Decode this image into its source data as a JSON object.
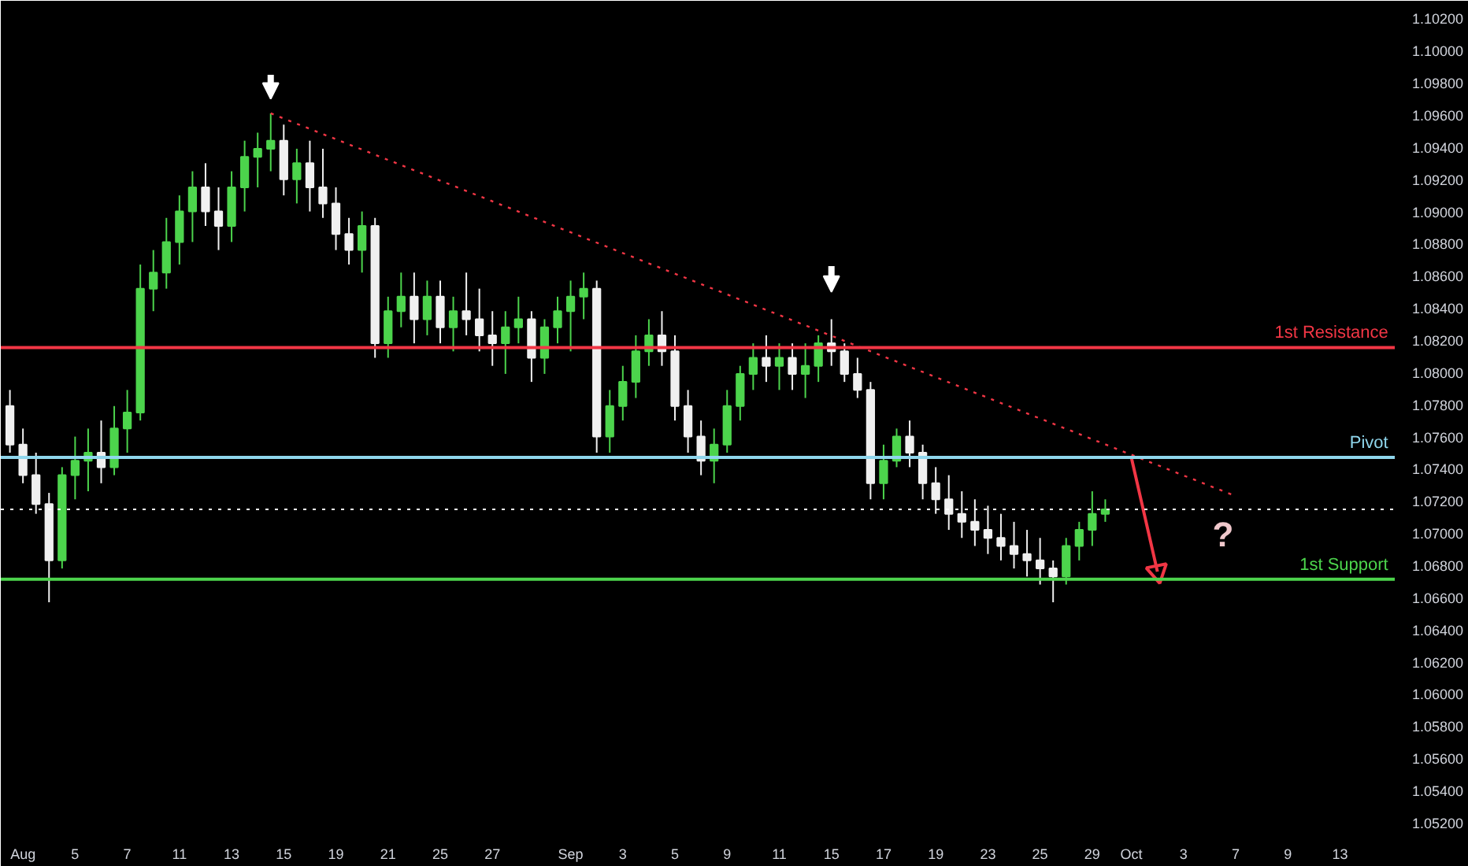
{
  "chart_data": {
    "type": "candlestick",
    "categories": [
      null,
      "Aug",
      null,
      null,
      null,
      "5",
      null,
      null,
      null,
      "7",
      null,
      null,
      null,
      "11",
      null,
      null,
      null,
      "13",
      null,
      null,
      null,
      "15",
      null,
      null,
      null,
      "19",
      null,
      null,
      null,
      "21",
      null,
      null,
      null,
      "25",
      null,
      null,
      null,
      "27",
      null,
      null,
      null,
      null,
      null,
      "Sep",
      null,
      null,
      null,
      "3",
      null,
      null,
      null,
      "5",
      null,
      null,
      null,
      "9",
      null,
      null,
      null,
      "11",
      null,
      null,
      null,
      "15",
      null,
      null,
      null,
      "17",
      null,
      null,
      null,
      "19",
      null,
      null,
      null,
      "23",
      null,
      null,
      null,
      "25",
      null,
      null,
      null,
      "29",
      null,
      null,
      "Oct",
      null,
      null,
      null,
      "3",
      null,
      null,
      null,
      "7",
      null,
      null,
      null,
      "9",
      null,
      null,
      null,
      "13",
      null,
      null,
      null,
      null
    ],
    "ohlc": [
      [
        1.0779,
        1.0789,
        1.075,
        1.0755
      ],
      [
        1.0755,
        1.0765,
        1.0731,
        1.0736
      ],
      [
        1.0736,
        1.075,
        1.0712,
        1.0718
      ],
      [
        1.0718,
        1.0725,
        1.0657,
        1.0683
      ],
      [
        1.0683,
        1.0741,
        1.0678,
        1.0736
      ],
      [
        1.0736,
        1.076,
        1.0721,
        1.0745
      ],
      [
        1.0745,
        1.0765,
        1.0726,
        1.075
      ],
      [
        1.075,
        1.077,
        1.0731,
        1.0741
      ],
      [
        1.0741,
        1.0779,
        1.0736,
        1.0765
      ],
      [
        1.0765,
        1.0789,
        1.075,
        1.0775
      ],
      [
        1.0775,
        1.0867,
        1.077,
        1.0852
      ],
      [
        1.0852,
        1.0876,
        1.0838,
        1.0862
      ],
      [
        1.0862,
        1.0896,
        1.0852,
        1.0881
      ],
      [
        1.0881,
        1.091,
        1.0867,
        1.09
      ],
      [
        1.09,
        1.0925,
        1.0881,
        1.0915
      ],
      [
        1.0915,
        1.093,
        1.0891,
        1.09
      ],
      [
        1.09,
        1.0915,
        1.0876,
        1.0891
      ],
      [
        1.0891,
        1.0925,
        1.0881,
        1.0915
      ],
      [
        1.0915,
        1.0944,
        1.09,
        1.0934
      ],
      [
        1.0934,
        1.0949,
        1.0915,
        1.0939
      ],
      [
        1.0939,
        1.0961,
        1.0925,
        1.0944
      ],
      [
        1.0944,
        1.0954,
        1.091,
        1.092
      ],
      [
        1.092,
        1.0939,
        1.0905,
        1.093
      ],
      [
        1.093,
        1.0944,
        1.09,
        1.0915
      ],
      [
        1.0915,
        1.0939,
        1.0896,
        1.0905
      ],
      [
        1.0905,
        1.0915,
        1.0876,
        1.0886
      ],
      [
        1.0886,
        1.0896,
        1.0867,
        1.0876
      ],
      [
        1.0876,
        1.09,
        1.0862,
        1.0891
      ],
      [
        1.0891,
        1.0896,
        1.0809,
        1.0818
      ],
      [
        1.0818,
        1.0847,
        1.0809,
        1.0838
      ],
      [
        1.0838,
        1.0862,
        1.0828,
        1.0847
      ],
      [
        1.0847,
        1.0862,
        1.0818,
        1.0833
      ],
      [
        1.0833,
        1.0857,
        1.0823,
        1.0847
      ],
      [
        1.0847,
        1.0857,
        1.0818,
        1.0828
      ],
      [
        1.0828,
        1.0847,
        1.0813,
        1.0838
      ],
      [
        1.0838,
        1.0862,
        1.0823,
        1.0833
      ],
      [
        1.0833,
        1.0852,
        1.0813,
        1.0823
      ],
      [
        1.0823,
        1.0838,
        1.0804,
        1.0818
      ],
      [
        1.0818,
        1.0838,
        1.0799,
        1.0828
      ],
      [
        1.0828,
        1.0847,
        1.0818,
        1.0833
      ],
      [
        1.0833,
        1.0838,
        1.0794,
        1.0809
      ],
      [
        1.0809,
        1.0833,
        1.0799,
        1.0828
      ],
      [
        1.0828,
        1.0847,
        1.0818,
        1.0838
      ],
      [
        1.0838,
        1.0857,
        1.0813,
        1.0847
      ],
      [
        1.0847,
        1.0862,
        1.0833,
        1.0852
      ],
      [
        1.0852,
        1.0857,
        1.075,
        1.076
      ],
      [
        1.076,
        1.0789,
        1.075,
        1.0779
      ],
      [
        1.0779,
        1.0804,
        1.077,
        1.0794
      ],
      [
        1.0794,
        1.0823,
        1.0784,
        1.0813
      ],
      [
        1.0813,
        1.0833,
        1.0804,
        1.0823
      ],
      [
        1.0823,
        1.0838,
        1.0804,
        1.0813
      ],
      [
        1.0813,
        1.0823,
        1.077,
        1.0779
      ],
      [
        1.0779,
        1.0789,
        1.075,
        1.076
      ],
      [
        1.076,
        1.077,
        1.0736,
        1.0745
      ],
      [
        1.0745,
        1.0765,
        1.0731,
        1.0755
      ],
      [
        1.0755,
        1.0789,
        1.075,
        1.0779
      ],
      [
        1.0779,
        1.0804,
        1.077,
        1.0799
      ],
      [
        1.0799,
        1.0818,
        1.0789,
        1.0809
      ],
      [
        1.0809,
        1.0823,
        1.0794,
        1.0804
      ],
      [
        1.0804,
        1.0818,
        1.0789,
        1.0809
      ],
      [
        1.0809,
        1.0818,
        1.0789,
        1.0799
      ],
      [
        1.0799,
        1.0818,
        1.0784,
        1.0804
      ],
      [
        1.0804,
        1.0823,
        1.0794,
        1.0818
      ],
      [
        1.0818,
        1.0833,
        1.0804,
        1.0813
      ],
      [
        1.0813,
        1.0818,
        1.0794,
        1.0799
      ],
      [
        1.0799,
        1.0809,
        1.0784,
        1.0789
      ],
      [
        1.0789,
        1.0794,
        1.0721,
        1.0731
      ],
      [
        1.0731,
        1.0755,
        1.0721,
        1.0745
      ],
      [
        1.0745,
        1.0765,
        1.0741,
        1.076
      ],
      [
        1.076,
        1.077,
        1.0741,
        1.075
      ],
      [
        1.075,
        1.0755,
        1.0721,
        1.0731
      ],
      [
        1.0731,
        1.0741,
        1.0712,
        1.0721
      ],
      [
        1.0721,
        1.0736,
        1.0702,
        1.0712
      ],
      [
        1.0712,
        1.0726,
        1.0697,
        1.0707
      ],
      [
        1.0707,
        1.0721,
        1.0692,
        1.0702
      ],
      [
        1.0702,
        1.0717,
        1.0687,
        1.0697
      ],
      [
        1.0697,
        1.0712,
        1.0683,
        1.0692
      ],
      [
        1.0692,
        1.0707,
        1.0678,
        1.0687
      ],
      [
        1.0687,
        1.0702,
        1.0673,
        1.0683
      ],
      [
        1.0683,
        1.0697,
        1.0668,
        1.0678
      ],
      [
        1.0678,
        1.0683,
        1.0657,
        1.0673
      ],
      [
        1.0673,
        1.0697,
        1.0668,
        1.0692
      ],
      [
        1.0692,
        1.0707,
        1.0683,
        1.0702
      ],
      [
        1.0702,
        1.0726,
        1.0692,
        1.0712
      ],
      [
        1.0712,
        1.0721,
        1.0707,
        1.07148
      ],
      null,
      null,
      null,
      null,
      null,
      null,
      null,
      null,
      null,
      null,
      null,
      null,
      null,
      null,
      null,
      null,
      null,
      null,
      null,
      null,
      null,
      null
    ],
    "series": [
      {
        "type": "line",
        "color": "#f23645",
        "line_style": "dotted",
        "values": [
          null,
          null,
          null,
          null,
          null,
          null,
          null,
          null,
          null,
          null,
          null,
          null,
          null,
          null,
          null,
          null,
          null,
          null,
          null,
          null,
          1.0961,
          null,
          null,
          null,
          null,
          null,
          null,
          null,
          null,
          null,
          null,
          null,
          null,
          null,
          null,
          null,
          null,
          null,
          null,
          null,
          null,
          null,
          null,
          null,
          null,
          null,
          null,
          null,
          null,
          null,
          null,
          null,
          null,
          null,
          null,
          null,
          null,
          null,
          null,
          null,
          null,
          null,
          null,
          null,
          null,
          null,
          null,
          null,
          null,
          null,
          null,
          null,
          null,
          null,
          null,
          null,
          null,
          null,
          null,
          null,
          null,
          null,
          null,
          null,
          null,
          null,
          null,
          null,
          null,
          null,
          null,
          null,
          null,
          null,
          1.0723,
          null,
          null,
          null,
          null,
          null,
          null,
          null,
          null,
          null,
          null,
          null,
          null
        ]
      },
      {
        "type": "line",
        "line_style": "solid",
        "color": "#f23645",
        "values": [
          null,
          null,
          null,
          null,
          null,
          null,
          null,
          null,
          null,
          null,
          null,
          null,
          null,
          null,
          null,
          null,
          null,
          null,
          null,
          null,
          null,
          null,
          null,
          null,
          null,
          null,
          null,
          null,
          null,
          null,
          null,
          null,
          null,
          null,
          null,
          null,
          null,
          null,
          null,
          null,
          null,
          null,
          null,
          null,
          null,
          null,
          null,
          null,
          null,
          null,
          null,
          null,
          null,
          null,
          null,
          null,
          null,
          null,
          null,
          null,
          null,
          null,
          null,
          null,
          null,
          null,
          null,
          null,
          null,
          null,
          null,
          null,
          null,
          null,
          null,
          null,
          null,
          null,
          null,
          null,
          null,
          null,
          null,
          null,
          null,
          null,
          1.0747,
          null,
          1.0676,
          null,
          null,
          null,
          null,
          null,
          null,
          null,
          null,
          null,
          null,
          null,
          null,
          null,
          null,
          null,
          null,
          null,
          null
        ]
      }
    ],
    "ylim": [
      1.0516,
      1.1031
    ],
    "yticks": [
      {
        "value": 1.052,
        "label": "1.05200"
      },
      {
        "value": 1.054,
        "label": "1.05400"
      },
      {
        "value": 1.056,
        "label": "1.05600"
      },
      {
        "value": 1.058,
        "label": "1.05800"
      },
      {
        "value": 1.06,
        "label": "1.06000"
      },
      {
        "value": 1.062,
        "label": "1.06200"
      },
      {
        "value": 1.064,
        "label": "1.06400"
      },
      {
        "value": 1.066,
        "label": "1.06600"
      },
      {
        "value": 1.068,
        "label": "1.06800"
      },
      {
        "value": 1.07,
        "label": "1.07000"
      },
      {
        "value": 1.072,
        "label": "1.07200"
      },
      {
        "value": 1.074,
        "label": "1.07400"
      },
      {
        "value": 1.076,
        "label": "1.07600"
      },
      {
        "value": 1.078,
        "label": "1.07800"
      },
      {
        "value": 1.08,
        "label": "1.08000"
      },
      {
        "value": 1.082,
        "label": "1.08200"
      },
      {
        "value": 1.084,
        "label": "1.08400"
      },
      {
        "value": 1.086,
        "label": "1.08600"
      },
      {
        "value": 1.088,
        "label": "1.08800"
      },
      {
        "value": 1.09,
        "label": "1.09000"
      },
      {
        "value": 1.092,
        "label": "1.09200"
      },
      {
        "value": 1.094,
        "label": "1.09400"
      },
      {
        "value": 1.096,
        "label": "1.09600"
      },
      {
        "value": 1.098,
        "label": "1.09800"
      },
      {
        "value": 1.1,
        "label": "1.10000"
      },
      {
        "value": 1.102,
        "label": "1.10200"
      }
    ],
    "ref_lines": [
      {
        "axis": "y",
        "value": 1.08154,
        "label": "1st Resistance",
        "color": "#f23645"
      },
      {
        "axis": "y",
        "value": 1.07471,
        "label": "Pivot",
        "color": "#8fd6ec"
      },
      {
        "axis": "y",
        "value": 1.07148,
        "label": null,
        "color": "#ffffff",
        "line_style": "dotted"
      },
      {
        "axis": "y",
        "value": 1.06713,
        "label": "1st Support",
        "color": "#4cd44c"
      }
    ],
    "annotations": [
      "?"
    ]
  }
}
